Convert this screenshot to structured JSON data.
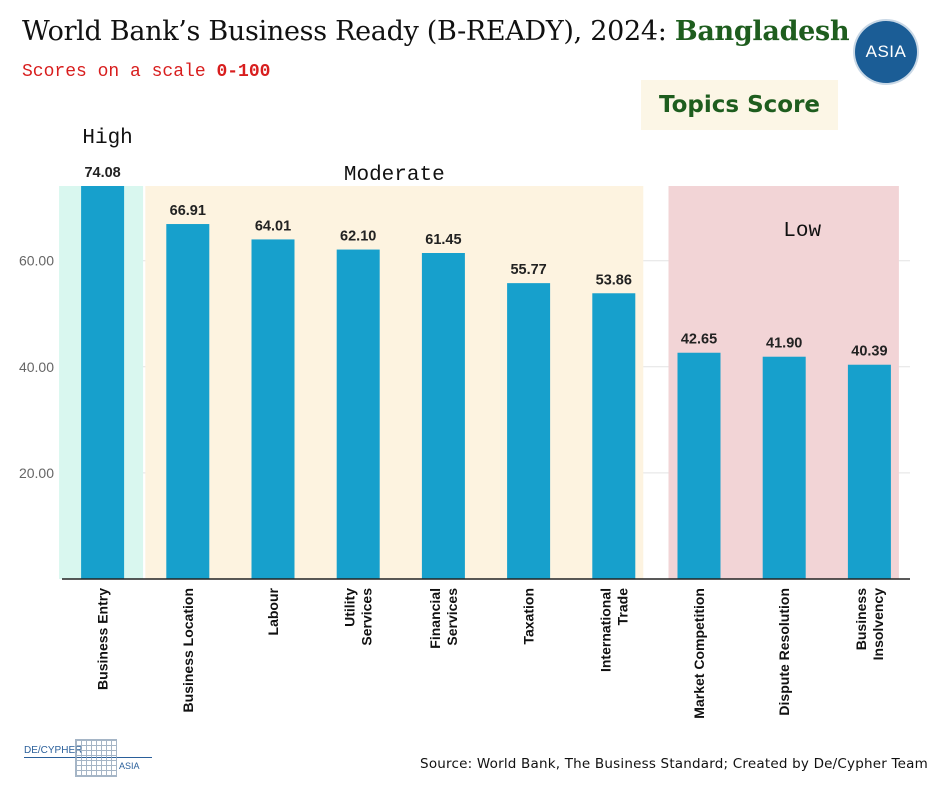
{
  "header": {
    "title_main": "World Bank’s Business Ready (B-READY), 2024: ",
    "title_country": "Bangladesh",
    "subtitle_prefix": "Scores on a scale ",
    "subtitle_range": "0-100",
    "badge": "Topics Score"
  },
  "logo": {
    "text": "ASIA"
  },
  "brand": {
    "left": "DE/CYPHER",
    "right": "ASIA"
  },
  "source": "Source: World Bank, The Business Standard; Created by De/Cypher Team",
  "colors": {
    "bar": "#17a0cc",
    "high_band": "#d9f7ef",
    "moderate_band": "#fdf3e0",
    "low_band": "#f2d4d6",
    "title_green": "#1e5d1e",
    "subtitle_red": "#d81e1e"
  },
  "chart_data": {
    "type": "bar",
    "title": "World Bank’s Business Ready (B-READY), 2024: Bangladesh",
    "subtitle": "Scores on a scale 0-100",
    "xlabel": "",
    "ylabel": "",
    "ylim": [
      0,
      74.08
    ],
    "yticks": [
      20,
      40,
      60
    ],
    "ytick_labels": [
      "20.00",
      "40.00",
      "60.00"
    ],
    "grid": true,
    "categories": [
      [
        "Business Entry"
      ],
      [
        "Business Location"
      ],
      [
        "Labour"
      ],
      [
        "Utility",
        "Services"
      ],
      [
        "Financial",
        "Services"
      ],
      [
        "Taxation"
      ],
      [
        "International",
        "Trade"
      ],
      [
        "Market Competition"
      ],
      [
        "Dispute Resolution"
      ],
      [
        "Business",
        "Insolvency"
      ]
    ],
    "values": [
      74.08,
      66.91,
      64.01,
      62.1,
      61.45,
      55.77,
      53.86,
      42.65,
      41.9,
      40.39
    ],
    "value_labels": [
      "74.08",
      "66.91",
      "64.01",
      "62.10",
      "61.45",
      "55.77",
      "53.86",
      "42.65",
      "41.90",
      "40.39"
    ],
    "groups": [
      {
        "name": "High",
        "start": 0,
        "end": 0,
        "color": "#d9f7ef"
      },
      {
        "name": "Moderate",
        "start": 1,
        "end": 6,
        "color": "#fdf3e0"
      },
      {
        "name": "Low",
        "start": 7,
        "end": 9,
        "color": "#f2d4d6"
      }
    ]
  }
}
